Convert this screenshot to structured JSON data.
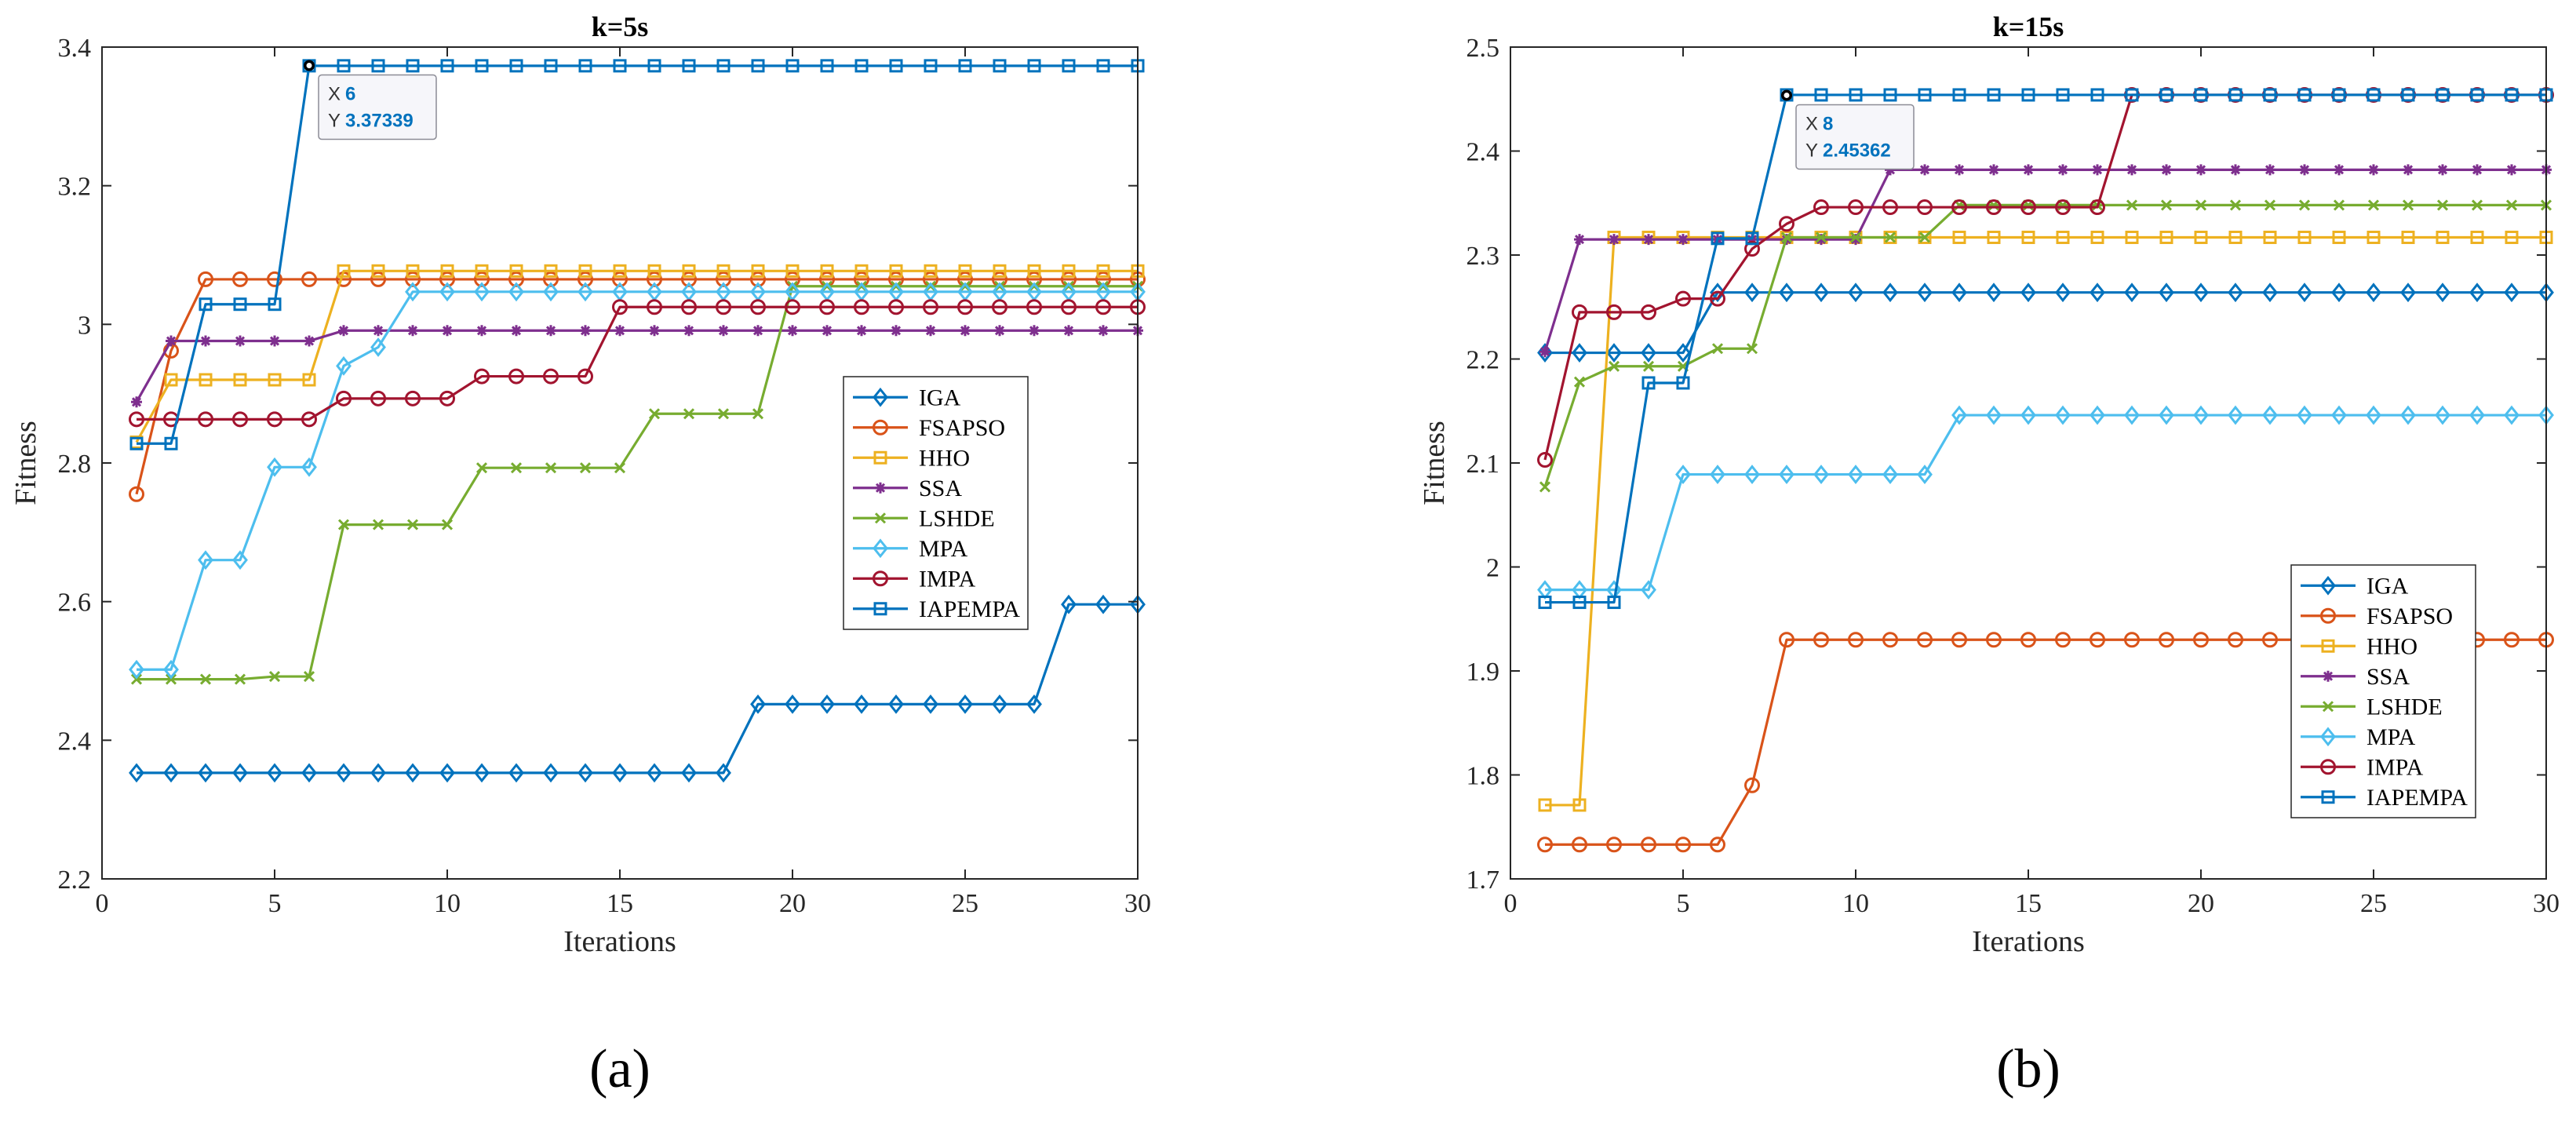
{
  "chart_data": [
    {
      "type": "line",
      "panel_label": "(a)",
      "title": "k=5s",
      "xlabel": "Iterations",
      "ylabel": "Fitness",
      "xlim": [
        0,
        30
      ],
      "ylim": [
        2.2,
        3.4
      ],
      "xticks": [
        0,
        5,
        10,
        15,
        20,
        25,
        30
      ],
      "yticks": [
        2.2,
        2.4,
        2.6,
        2.8,
        3.0,
        3.2,
        3.4
      ],
      "ytick_labels": [
        "2.2",
        "2.4",
        "2.6",
        "2.8",
        "3",
        "3.2",
        "3.4"
      ],
      "legend_position": "center-right",
      "datatip": {
        "x_label": "X",
        "x_value": "6",
        "y_label": "Y",
        "y_value": "3.37339",
        "x": 6,
        "y": 3.37339
      },
      "series": [
        {
          "name": "IGA",
          "color": "#0072BD",
          "marker": "diamond",
          "values": [
            2.353,
            2.353,
            2.353,
            2.353,
            2.353,
            2.353,
            2.353,
            2.353,
            2.353,
            2.353,
            2.353,
            2.353,
            2.353,
            2.353,
            2.353,
            2.353,
            2.353,
            2.353,
            2.452,
            2.452,
            2.452,
            2.452,
            2.452,
            2.452,
            2.452,
            2.452,
            2.452,
            2.596,
            2.596,
            2.596
          ]
        },
        {
          "name": "FSAPSO",
          "color": "#D95319",
          "marker": "circle",
          "values": [
            2.755,
            2.962,
            3.065,
            3.065,
            3.065,
            3.065,
            3.065,
            3.065,
            3.065,
            3.065,
            3.065,
            3.065,
            3.065,
            3.065,
            3.065,
            3.065,
            3.065,
            3.065,
            3.065,
            3.065,
            3.065,
            3.065,
            3.065,
            3.065,
            3.065,
            3.065,
            3.065,
            3.065,
            3.065,
            3.065
          ]
        },
        {
          "name": "HHO",
          "color": "#EDB120",
          "marker": "square",
          "values": [
            2.83,
            2.92,
            2.92,
            2.92,
            2.92,
            2.92,
            3.077,
            3.077,
            3.077,
            3.077,
            3.077,
            3.077,
            3.077,
            3.077,
            3.077,
            3.077,
            3.077,
            3.077,
            3.077,
            3.077,
            3.077,
            3.077,
            3.077,
            3.077,
            3.077,
            3.077,
            3.077,
            3.077,
            3.077,
            3.077
          ]
        },
        {
          "name": "SSA",
          "color": "#7E2F8E",
          "marker": "asterisk",
          "values": [
            2.888,
            2.976,
            2.976,
            2.976,
            2.976,
            2.976,
            2.991,
            2.991,
            2.991,
            2.991,
            2.991,
            2.991,
            2.991,
            2.991,
            2.991,
            2.991,
            2.991,
            2.991,
            2.991,
            2.991,
            2.991,
            2.991,
            2.991,
            2.991,
            2.991,
            2.991,
            2.991,
            2.991,
            2.991,
            2.991
          ]
        },
        {
          "name": "LSHDE",
          "color": "#77AC30",
          "marker": "x",
          "values": [
            2.488,
            2.488,
            2.488,
            2.488,
            2.492,
            2.492,
            2.711,
            2.711,
            2.711,
            2.711,
            2.793,
            2.793,
            2.793,
            2.793,
            2.793,
            2.871,
            2.871,
            2.871,
            2.871,
            3.055,
            3.055,
            3.055,
            3.055,
            3.055,
            3.055,
            3.055,
            3.055,
            3.055,
            3.055,
            3.055
          ]
        },
        {
          "name": "MPA",
          "color": "#4DBEEE",
          "marker": "diamond",
          "values": [
            2.502,
            2.502,
            2.66,
            2.66,
            2.794,
            2.794,
            2.94,
            2.967,
            3.047,
            3.047,
            3.047,
            3.047,
            3.047,
            3.047,
            3.047,
            3.047,
            3.047,
            3.047,
            3.047,
            3.047,
            3.047,
            3.047,
            3.047,
            3.047,
            3.047,
            3.047,
            3.047,
            3.047,
            3.047,
            3.047
          ]
        },
        {
          "name": "IMPA",
          "color": "#A2142F",
          "marker": "circle",
          "values": [
            2.863,
            2.863,
            2.863,
            2.863,
            2.863,
            2.863,
            2.893,
            2.893,
            2.893,
            2.893,
            2.925,
            2.925,
            2.925,
            2.925,
            3.025,
            3.025,
            3.025,
            3.025,
            3.025,
            3.025,
            3.025,
            3.025,
            3.025,
            3.025,
            3.025,
            3.025,
            3.025,
            3.025,
            3.025,
            3.025
          ]
        },
        {
          "name": "IAPEMPA",
          "color": "#0072BD",
          "marker": "square",
          "values": [
            2.828,
            2.828,
            3.029,
            3.029,
            3.029,
            3.373,
            3.373,
            3.373,
            3.373,
            3.373,
            3.373,
            3.373,
            3.373,
            3.373,
            3.373,
            3.373,
            3.373,
            3.373,
            3.373,
            3.373,
            3.373,
            3.373,
            3.373,
            3.373,
            3.373,
            3.373,
            3.373,
            3.373,
            3.373,
            3.373
          ]
        }
      ]
    },
    {
      "type": "line",
      "panel_label": "(b)",
      "title": "k=15s",
      "xlabel": "Iterations",
      "ylabel": "Fitness",
      "xlim": [
        0,
        30
      ],
      "ylim": [
        1.7,
        2.5
      ],
      "xticks": [
        0,
        5,
        10,
        15,
        20,
        25,
        30
      ],
      "yticks": [
        1.7,
        1.8,
        1.9,
        2.0,
        2.1,
        2.2,
        2.3,
        2.4,
        2.5
      ],
      "ytick_labels": [
        "1.7",
        "1.8",
        "1.9",
        "2",
        "2.1",
        "2.2",
        "2.3",
        "2.4",
        "2.5"
      ],
      "legend_position": "lower-right",
      "datatip": {
        "x_label": "X",
        "x_value": "8",
        "y_label": "Y",
        "y_value": "2.45362",
        "x": 8,
        "y": 2.45362
      },
      "series": [
        {
          "name": "IGA",
          "color": "#0072BD",
          "marker": "diamond",
          "values": [
            2.206,
            2.206,
            2.206,
            2.206,
            2.206,
            2.264,
            2.264,
            2.264,
            2.264,
            2.264,
            2.264,
            2.264,
            2.264,
            2.264,
            2.264,
            2.264,
            2.264,
            2.264,
            2.264,
            2.264,
            2.264,
            2.264,
            2.264,
            2.264,
            2.264,
            2.264,
            2.264,
            2.264,
            2.264,
            2.264
          ]
        },
        {
          "name": "FSAPSO",
          "color": "#D95319",
          "marker": "circle",
          "values": [
            1.733,
            1.733,
            1.733,
            1.733,
            1.733,
            1.733,
            1.79,
            1.93,
            1.93,
            1.93,
            1.93,
            1.93,
            1.93,
            1.93,
            1.93,
            1.93,
            1.93,
            1.93,
            1.93,
            1.93,
            1.93,
            1.93,
            1.93,
            1.93,
            1.93,
            1.93,
            1.93,
            1.93,
            1.93,
            1.93
          ]
        },
        {
          "name": "HHO",
          "color": "#EDB120",
          "marker": "square",
          "values": [
            1.771,
            1.771,
            2.317,
            2.317,
            2.317,
            2.317,
            2.317,
            2.317,
            2.317,
            2.317,
            2.317,
            2.317,
            2.317,
            2.317,
            2.317,
            2.317,
            2.317,
            2.317,
            2.317,
            2.317,
            2.317,
            2.317,
            2.317,
            2.317,
            2.317,
            2.317,
            2.317,
            2.317,
            2.317,
            2.317
          ]
        },
        {
          "name": "SSA",
          "color": "#7E2F8E",
          "marker": "asterisk",
          "values": [
            2.207,
            2.315,
            2.315,
            2.315,
            2.315,
            2.315,
            2.315,
            2.315,
            2.315,
            2.315,
            2.382,
            2.382,
            2.382,
            2.382,
            2.382,
            2.382,
            2.382,
            2.382,
            2.382,
            2.382,
            2.382,
            2.382,
            2.382,
            2.382,
            2.382,
            2.382,
            2.382,
            2.382,
            2.382,
            2.382
          ]
        },
        {
          "name": "LSHDE",
          "color": "#77AC30",
          "marker": "x",
          "values": [
            2.077,
            2.178,
            2.193,
            2.193,
            2.193,
            2.21,
            2.21,
            2.317,
            2.317,
            2.317,
            2.317,
            2.317,
            2.348,
            2.348,
            2.348,
            2.348,
            2.348,
            2.348,
            2.348,
            2.348,
            2.348,
            2.348,
            2.348,
            2.348,
            2.348,
            2.348,
            2.348,
            2.348,
            2.348,
            2.348
          ]
        },
        {
          "name": "MPA",
          "color": "#4DBEEE",
          "marker": "diamond",
          "values": [
            1.978,
            1.978,
            1.978,
            1.978,
            2.089,
            2.089,
            2.089,
            2.089,
            2.089,
            2.089,
            2.089,
            2.089,
            2.146,
            2.146,
            2.146,
            2.146,
            2.146,
            2.146,
            2.146,
            2.146,
            2.146,
            2.146,
            2.146,
            2.146,
            2.146,
            2.146,
            2.146,
            2.146,
            2.146,
            2.146
          ]
        },
        {
          "name": "IMPA",
          "color": "#A2142F",
          "marker": "circle",
          "values": [
            2.103,
            2.245,
            2.245,
            2.245,
            2.258,
            2.258,
            2.306,
            2.33,
            2.346,
            2.346,
            2.346,
            2.346,
            2.346,
            2.346,
            2.346,
            2.346,
            2.346,
            2.454,
            2.454,
            2.454,
            2.454,
            2.454,
            2.454,
            2.454,
            2.454,
            2.454,
            2.454,
            2.454,
            2.454,
            2.454
          ]
        },
        {
          "name": "IAPEMPA",
          "color": "#0072BD",
          "marker": "square",
          "values": [
            1.966,
            1.966,
            1.966,
            2.177,
            2.177,
            2.316,
            2.316,
            2.454,
            2.454,
            2.454,
            2.454,
            2.454,
            2.454,
            2.454,
            2.454,
            2.454,
            2.454,
            2.454,
            2.454,
            2.454,
            2.454,
            2.454,
            2.454,
            2.454,
            2.454,
            2.454,
            2.454,
            2.454,
            2.454,
            2.454
          ]
        }
      ]
    }
  ]
}
